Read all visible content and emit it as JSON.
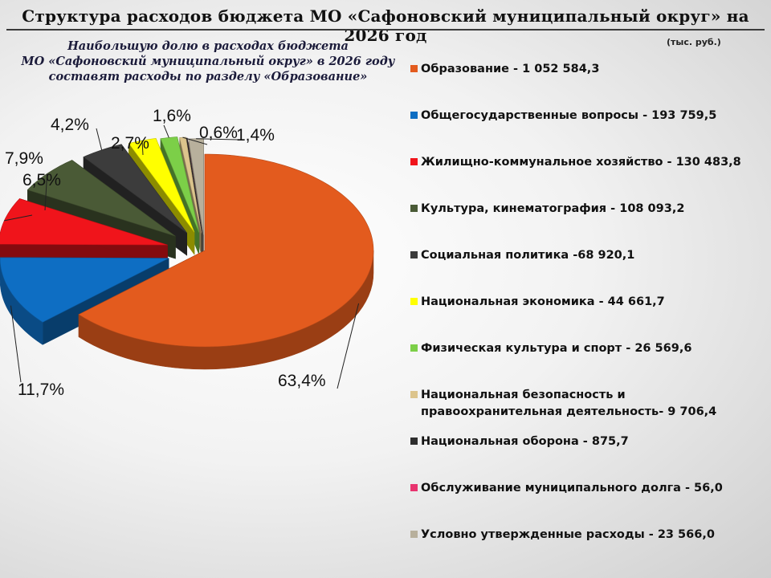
{
  "header": {
    "title": "Структура расходов бюджета  МО «Сафоновский муниципальный округ» на  2026  год",
    "subtitle_lines": [
      "Наибольшую долю в расходах бюджета",
      "МО «Сафоновский муниципальный округ» в 2026 году",
      "составят расходы по разделу «Образование»"
    ],
    "units": "(тыс. руб.)"
  },
  "chart_data": {
    "type": "pie",
    "title": "Структура расходов бюджета  МО «Сафоновский муниципальный округ» на  2026  год",
    "units": "(тыс. руб.)",
    "legend_position": "right",
    "series": [
      {
        "label": "Образование - 1 052 584,3",
        "value": 1052584.3,
        "pct_label": "63,4%",
        "color": "#e35b1e"
      },
      {
        "label": "Общегосударственные вопросы - 193 759,5",
        "value": 193759.5,
        "pct_label": "11,7%",
        "color": "#0e6ec3"
      },
      {
        "label": "Жилищно-коммунальное хозяйство - 130 483,8",
        "value": 130483.8,
        "pct_label": "7,9%",
        "color": "#f0141b"
      },
      {
        "label": "Культура, кинематография - 108 093,2",
        "value": 108093.2,
        "pct_label": "6,5%",
        "color": "#4a5a36"
      },
      {
        "label": "Социальная политика -68 920,1",
        "value": 68920.1,
        "pct_label": "4,2%",
        "color": "#3c3c3c"
      },
      {
        "label": "Национальная экономика - 44 661,7",
        "value": 44661.7,
        "pct_label": "2,7%",
        "color": "#ffff00"
      },
      {
        "label": "Физическая культура и спорт - 26 569,6",
        "value": 26569.6,
        "pct_label": "1,6%",
        "color": "#7ccf48"
      },
      {
        "label": "Национальная безопасность и правоохранительная деятельность- 9 706,4",
        "label_lines": [
          "Национальная безопасность и",
          "правоохранительная деятельность- 9 706,4"
        ],
        "value": 9706.4,
        "pct_label": "0,6%",
        "color": "#dcc48c"
      },
      {
        "label": "Национальная оборона -  875,7",
        "value": 875.7,
        "pct_label": "",
        "color": "#2e2e2e"
      },
      {
        "label": "Обслуживание муниципального  долга -  56,0",
        "value": 56.0,
        "pct_label": "",
        "color": "#e8336e"
      },
      {
        "label": "Условно утвержденные расходы - 23 566,0",
        "value": 23566.0,
        "pct_label": "1,4%",
        "color": "#b8b09c"
      }
    ]
  }
}
